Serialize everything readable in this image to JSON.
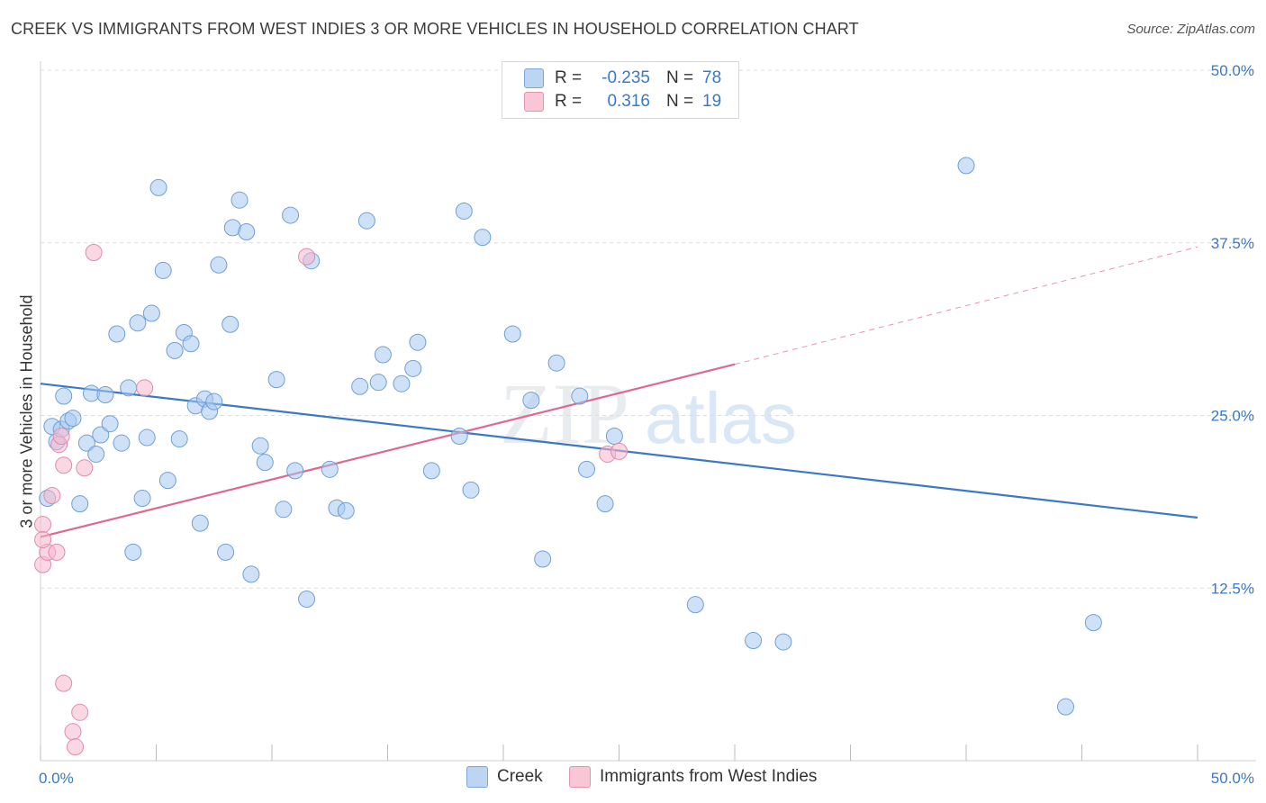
{
  "title": "CREEK VS IMMIGRANTS FROM WEST INDIES 3 OR MORE VEHICLES IN HOUSEHOLD CORRELATION CHART",
  "source": "Source: ZipAtlas.com",
  "watermark": {
    "zip": "ZIP",
    "atlas": "atlas"
  },
  "legend": {
    "r_label": "R =",
    "n_label": "N =",
    "series": [
      {
        "r": "-0.235",
        "n": "78"
      },
      {
        "r": "0.316",
        "n": "19"
      }
    ]
  },
  "chart_data": {
    "type": "scatter",
    "title": "CREEK VS IMMIGRANTS FROM WEST INDIES 3 OR MORE VEHICLES IN HOUSEHOLD CORRELATION CHART",
    "xlabel": "",
    "ylabel": "3 or more Vehicles in Household",
    "xlim": [
      0,
      50
    ],
    "ylim": [
      0,
      50
    ],
    "x_tick_labels": [
      "0.0%",
      "50.0%"
    ],
    "y_ticks": [
      12.5,
      25.0,
      37.5,
      50.0
    ],
    "y_tick_labels": [
      "12.5%",
      "25.0%",
      "37.5%",
      "50.0%"
    ],
    "grid": true,
    "legend_position": "top-center",
    "series": [
      {
        "name": "Creek",
        "color": "#a8c8f0",
        "line_color": "#3a78c8",
        "trend": {
          "x0": 0,
          "y0": 27.3,
          "x1": 50,
          "y1": 17.6
        },
        "points": [
          [
            0.3,
            19.0
          ],
          [
            0.5,
            24.2
          ],
          [
            0.7,
            23.1
          ],
          [
            0.9,
            24.0
          ],
          [
            1.0,
            26.4
          ],
          [
            1.2,
            24.6
          ],
          [
            1.4,
            24.8
          ],
          [
            1.7,
            18.6
          ],
          [
            2.0,
            23.0
          ],
          [
            2.2,
            26.6
          ],
          [
            2.4,
            22.2
          ],
          [
            2.6,
            23.6
          ],
          [
            2.8,
            26.5
          ],
          [
            3.0,
            24.4
          ],
          [
            3.3,
            30.9
          ],
          [
            3.5,
            23.0
          ],
          [
            3.8,
            27.0
          ],
          [
            4.0,
            15.1
          ],
          [
            4.2,
            31.7
          ],
          [
            4.4,
            19.0
          ],
          [
            4.6,
            23.4
          ],
          [
            4.8,
            32.4
          ],
          [
            5.1,
            41.5
          ],
          [
            5.3,
            35.5
          ],
          [
            5.5,
            20.3
          ],
          [
            5.8,
            29.7
          ],
          [
            6.0,
            23.3
          ],
          [
            6.2,
            31.0
          ],
          [
            6.5,
            30.2
          ],
          [
            6.7,
            25.7
          ],
          [
            6.9,
            17.2
          ],
          [
            7.1,
            26.2
          ],
          [
            7.3,
            25.3
          ],
          [
            7.5,
            26.0
          ],
          [
            7.7,
            35.9
          ],
          [
            8.0,
            15.1
          ],
          [
            8.2,
            31.6
          ],
          [
            8.3,
            38.6
          ],
          [
            8.6,
            40.6
          ],
          [
            8.9,
            38.3
          ],
          [
            9.1,
            13.5
          ],
          [
            9.5,
            22.8
          ],
          [
            9.7,
            21.6
          ],
          [
            10.2,
            27.6
          ],
          [
            10.5,
            18.2
          ],
          [
            10.8,
            39.5
          ],
          [
            11.0,
            21.0
          ],
          [
            11.5,
            11.7
          ],
          [
            11.7,
            36.2
          ],
          [
            12.5,
            21.1
          ],
          [
            12.8,
            18.3
          ],
          [
            13.2,
            18.1
          ],
          [
            13.8,
            27.1
          ],
          [
            14.1,
            39.1
          ],
          [
            14.6,
            27.4
          ],
          [
            14.8,
            29.4
          ],
          [
            15.6,
            27.3
          ],
          [
            16.1,
            28.4
          ],
          [
            16.3,
            30.3
          ],
          [
            16.9,
            21.0
          ],
          [
            18.1,
            23.5
          ],
          [
            18.3,
            39.8
          ],
          [
            18.6,
            19.6
          ],
          [
            19.1,
            37.9
          ],
          [
            20.4,
            30.9
          ],
          [
            21.2,
            26.1
          ],
          [
            21.7,
            14.6
          ],
          [
            22.3,
            28.8
          ],
          [
            23.3,
            26.4
          ],
          [
            23.6,
            21.1
          ],
          [
            24.4,
            18.6
          ],
          [
            24.8,
            23.5
          ],
          [
            28.3,
            11.3
          ],
          [
            30.8,
            8.7
          ],
          [
            32.1,
            8.6
          ],
          [
            40.0,
            43.1
          ],
          [
            44.3,
            3.9
          ],
          [
            45.5,
            10.0
          ]
        ]
      },
      {
        "name": "Immigrants from West Indies",
        "color": "#f6b8cc",
        "line_color": "#e06890",
        "trend": {
          "x0": 0,
          "y0": 16.2,
          "x1": 30,
          "y1": 28.7
        },
        "trend_extension": {
          "x0": 30,
          "y0": 28.7,
          "x1": 50,
          "y1": 37.2
        },
        "points": [
          [
            0.1,
            14.2
          ],
          [
            0.1,
            17.1
          ],
          [
            0.3,
            15.1
          ],
          [
            0.5,
            19.2
          ],
          [
            0.7,
            15.1
          ],
          [
            0.8,
            22.9
          ],
          [
            0.9,
            23.5
          ],
          [
            1.0,
            5.6
          ],
          [
            1.0,
            21.4
          ],
          [
            1.4,
            2.1
          ],
          [
            1.5,
            1.0
          ],
          [
            1.7,
            3.5
          ],
          [
            1.9,
            21.2
          ],
          [
            2.3,
            36.8
          ],
          [
            4.5,
            27.0
          ],
          [
            11.5,
            36.5
          ],
          [
            24.5,
            22.2
          ],
          [
            25.0,
            22.4
          ],
          [
            0.1,
            16.0
          ]
        ]
      }
    ]
  },
  "bottom_legend": [
    {
      "label": "Creek"
    },
    {
      "label": "Immigrants from West Indies"
    }
  ]
}
